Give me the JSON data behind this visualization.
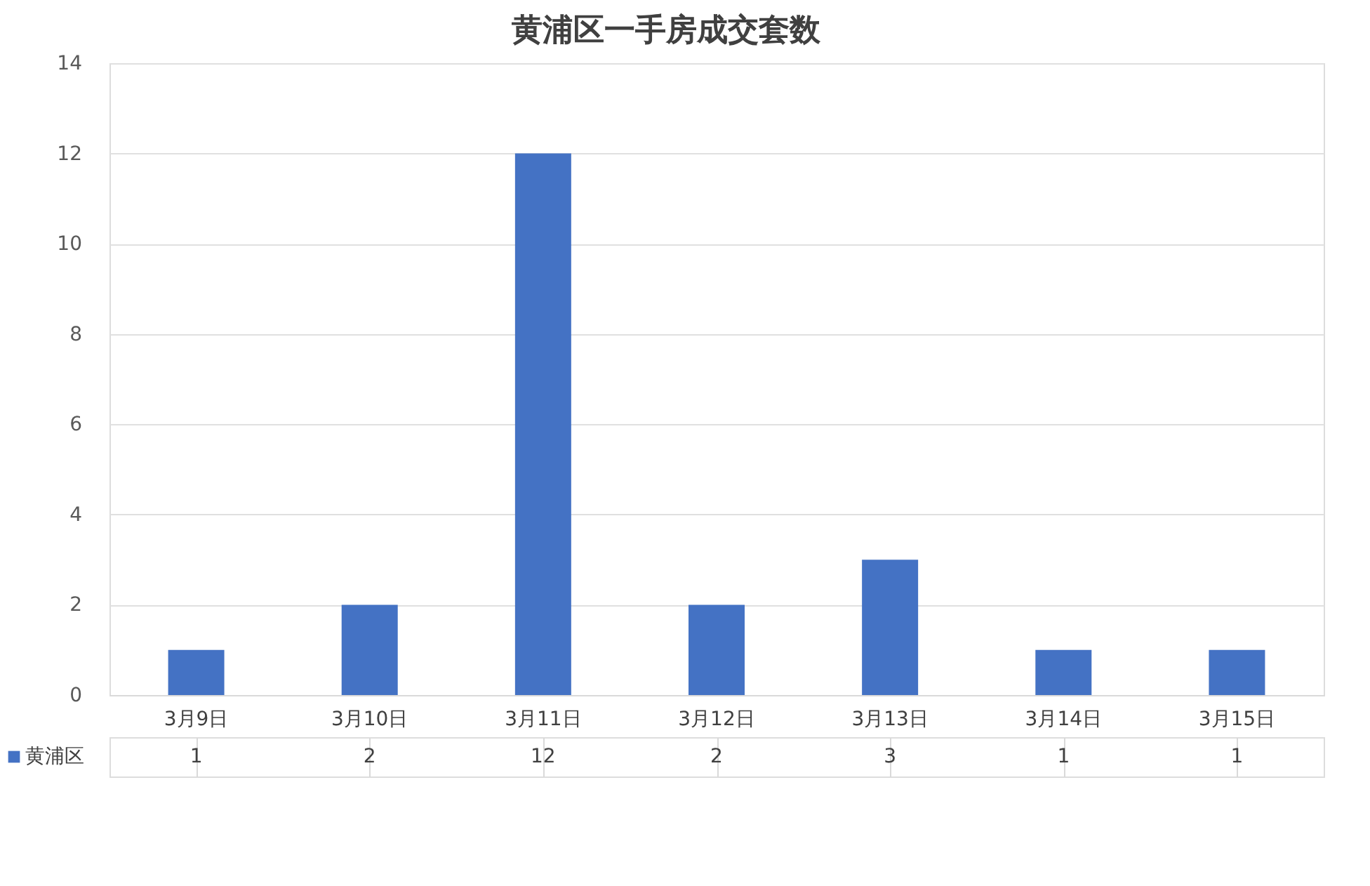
{
  "chart_data": {
    "type": "bar",
    "title": "黄浦区一手房成交套数",
    "categories": [
      "3月9日",
      "3月10日",
      "3月11日",
      "3月12日",
      "3月13日",
      "3月14日",
      "3月15日"
    ],
    "series": [
      {
        "name": "黄浦区",
        "color": "#4472c4",
        "values": [
          1,
          2,
          12,
          2,
          3,
          1,
          1
        ]
      }
    ],
    "ylim": [
      0,
      14
    ],
    "yticks": [
      0,
      2,
      4,
      6,
      8,
      10,
      12,
      14
    ],
    "grid": "y",
    "data_labels": true,
    "legend": "bottom left"
  }
}
